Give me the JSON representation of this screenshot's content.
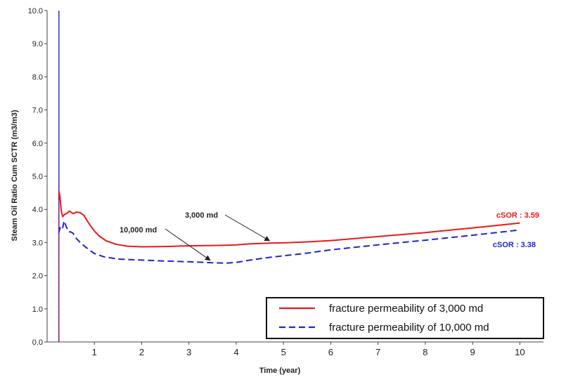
{
  "chart_data": {
    "type": "line",
    "title": "",
    "xlabel": "Time (year)",
    "ylabel": "Steam Oil Ratio Cum SCTR (m3/m3)",
    "xlim": [
      0,
      10.5
    ],
    "ylim": [
      0,
      10
    ],
    "xticks": [
      1,
      2,
      3,
      4,
      5,
      6,
      7,
      8,
      9,
      10
    ],
    "yticks": [
      "0.0",
      "1.0",
      "2.0",
      "3.0",
      "4.0",
      "5.0",
      "6.0",
      "7.0",
      "8.0",
      "9.0",
      "10.0"
    ],
    "grid": false,
    "legend_position": "bottom-right",
    "series": [
      {
        "name": "fracture permeability of 3,000 md",
        "color": "#e8191b",
        "dash": "solid",
        "x": [
          0.25,
          0.27,
          0.3,
          0.33,
          0.37,
          0.42,
          0.47,
          0.55,
          0.62,
          0.7,
          0.78,
          0.85,
          0.92,
          1.0,
          1.1,
          1.25,
          1.45,
          1.7,
          2.0,
          2.5,
          3.0,
          3.5,
          3.8,
          4.0,
          4.3,
          4.7,
          5.0,
          5.5,
          6.0,
          7.0,
          8.0,
          9.0,
          10.0
        ],
        "y": [
          4.55,
          4.4,
          3.95,
          3.78,
          3.85,
          3.88,
          3.95,
          3.87,
          3.92,
          3.9,
          3.82,
          3.65,
          3.5,
          3.35,
          3.2,
          3.05,
          2.95,
          2.89,
          2.87,
          2.88,
          2.9,
          2.91,
          2.92,
          2.93,
          2.96,
          2.98,
          2.99,
          3.02,
          3.06,
          3.18,
          3.3,
          3.44,
          3.59
        ]
      },
      {
        "name": "fracture permeability of 10,000 md",
        "color": "#1f23d6",
        "dash": "dashed",
        "x": [
          0.25,
          0.27,
          0.3,
          0.33,
          0.36,
          0.4,
          0.45,
          0.5,
          0.55,
          0.6,
          0.7,
          0.8,
          0.9,
          1.0,
          1.2,
          1.5,
          2.0,
          2.5,
          3.0,
          3.5,
          3.8,
          4.0,
          4.3,
          4.7,
          5.0,
          5.5,
          6.0,
          7.0,
          8.0,
          9.0,
          10.0
        ],
        "y": [
          3.3,
          3.45,
          3.38,
          3.45,
          3.65,
          3.5,
          3.32,
          3.32,
          3.28,
          3.15,
          3.0,
          2.88,
          2.77,
          2.67,
          2.57,
          2.5,
          2.47,
          2.44,
          2.42,
          2.39,
          2.38,
          2.4,
          2.47,
          2.55,
          2.6,
          2.68,
          2.78,
          2.93,
          3.07,
          3.22,
          3.38
        ]
      }
    ],
    "annotations": [
      {
        "id": "a3000",
        "text": "3,000 md",
        "arrow_to": [
          4.75,
          2.99
        ]
      },
      {
        "id": "a10000",
        "text": "10,000 md",
        "arrow_to": [
          3.45,
          2.4
        ]
      },
      {
        "id": "sor_red",
        "text": "cSOR : 3.59",
        "color": "#e8191b"
      },
      {
        "id": "sor_blue",
        "text": "cSOR : 3.38",
        "color": "#1f23d6"
      }
    ],
    "vertical_markers": [
      {
        "x": 0.25,
        "color": "#1f23d6",
        "dash": "solid"
      },
      {
        "x": 0.245,
        "color": "#e8191b",
        "dash": "dashed"
      }
    ]
  }
}
